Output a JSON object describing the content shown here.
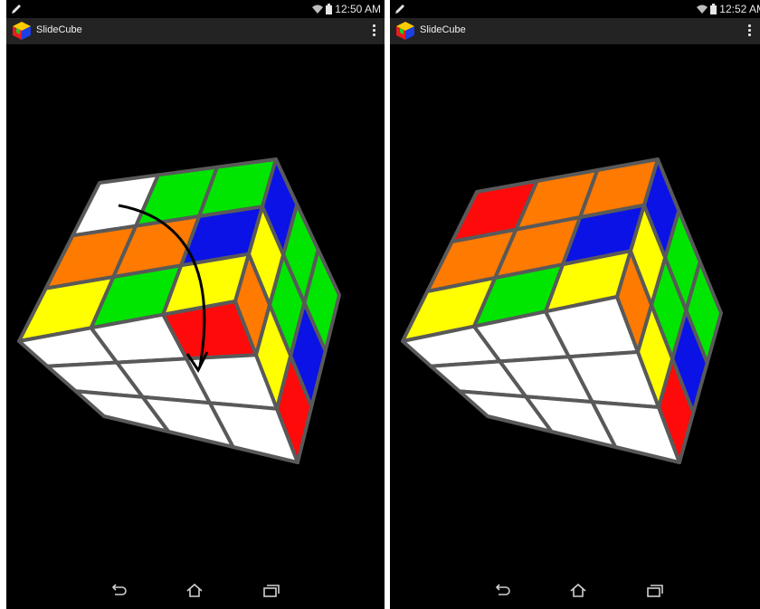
{
  "screens": [
    {
      "status_time": "12:50 AM",
      "app_title": "SlideCube",
      "faces": {
        "top": [
          [
            "white",
            "green",
            "green"
          ],
          [
            "orange",
            "orange",
            "blue"
          ],
          [
            "yellow",
            "green",
            "yellow"
          ]
        ],
        "front": [
          [
            "white",
            "white",
            "red"
          ],
          [
            "white",
            "white",
            "white"
          ],
          [
            "white",
            "white",
            "white"
          ]
        ],
        "right": [
          [
            "orange",
            "yellow",
            "blue"
          ],
          [
            "yellow",
            "green",
            "green"
          ],
          [
            "red",
            "blue",
            "green"
          ]
        ]
      },
      "gesture_arrow": true
    },
    {
      "status_time": "12:52 AM",
      "app_title": "SlideCube",
      "faces": {
        "top": [
          [
            "red",
            "orange",
            "orange"
          ],
          [
            "orange",
            "orange",
            "blue"
          ],
          [
            "yellow",
            "green",
            "yellow"
          ]
        ],
        "front": [
          [
            "white",
            "white",
            "white"
          ],
          [
            "white",
            "white",
            "white"
          ],
          [
            "white",
            "white",
            "white"
          ]
        ],
        "right": [
          [
            "orange",
            "yellow",
            "blue"
          ],
          [
            "yellow",
            "green",
            "green"
          ],
          [
            "red",
            "blue",
            "green"
          ]
        ]
      },
      "gesture_arrow": false
    }
  ],
  "colors": {
    "white": "#ffffff",
    "green": "#00e600",
    "blue": "#0a12e6",
    "orange": "#ff7a00",
    "yellow": "#ffff00",
    "red": "#ff0a0a",
    "grid": "#595959"
  },
  "icons": {
    "status_left": "pencil-icon",
    "status_wifi": "wifi-icon",
    "status_battery": "battery-icon",
    "app_logo": "slidecube-logo-icon",
    "overflow": "overflow-menu-icon",
    "nav_back": "back-icon",
    "nav_home": "home-icon",
    "nav_recents": "recent-apps-icon"
  }
}
